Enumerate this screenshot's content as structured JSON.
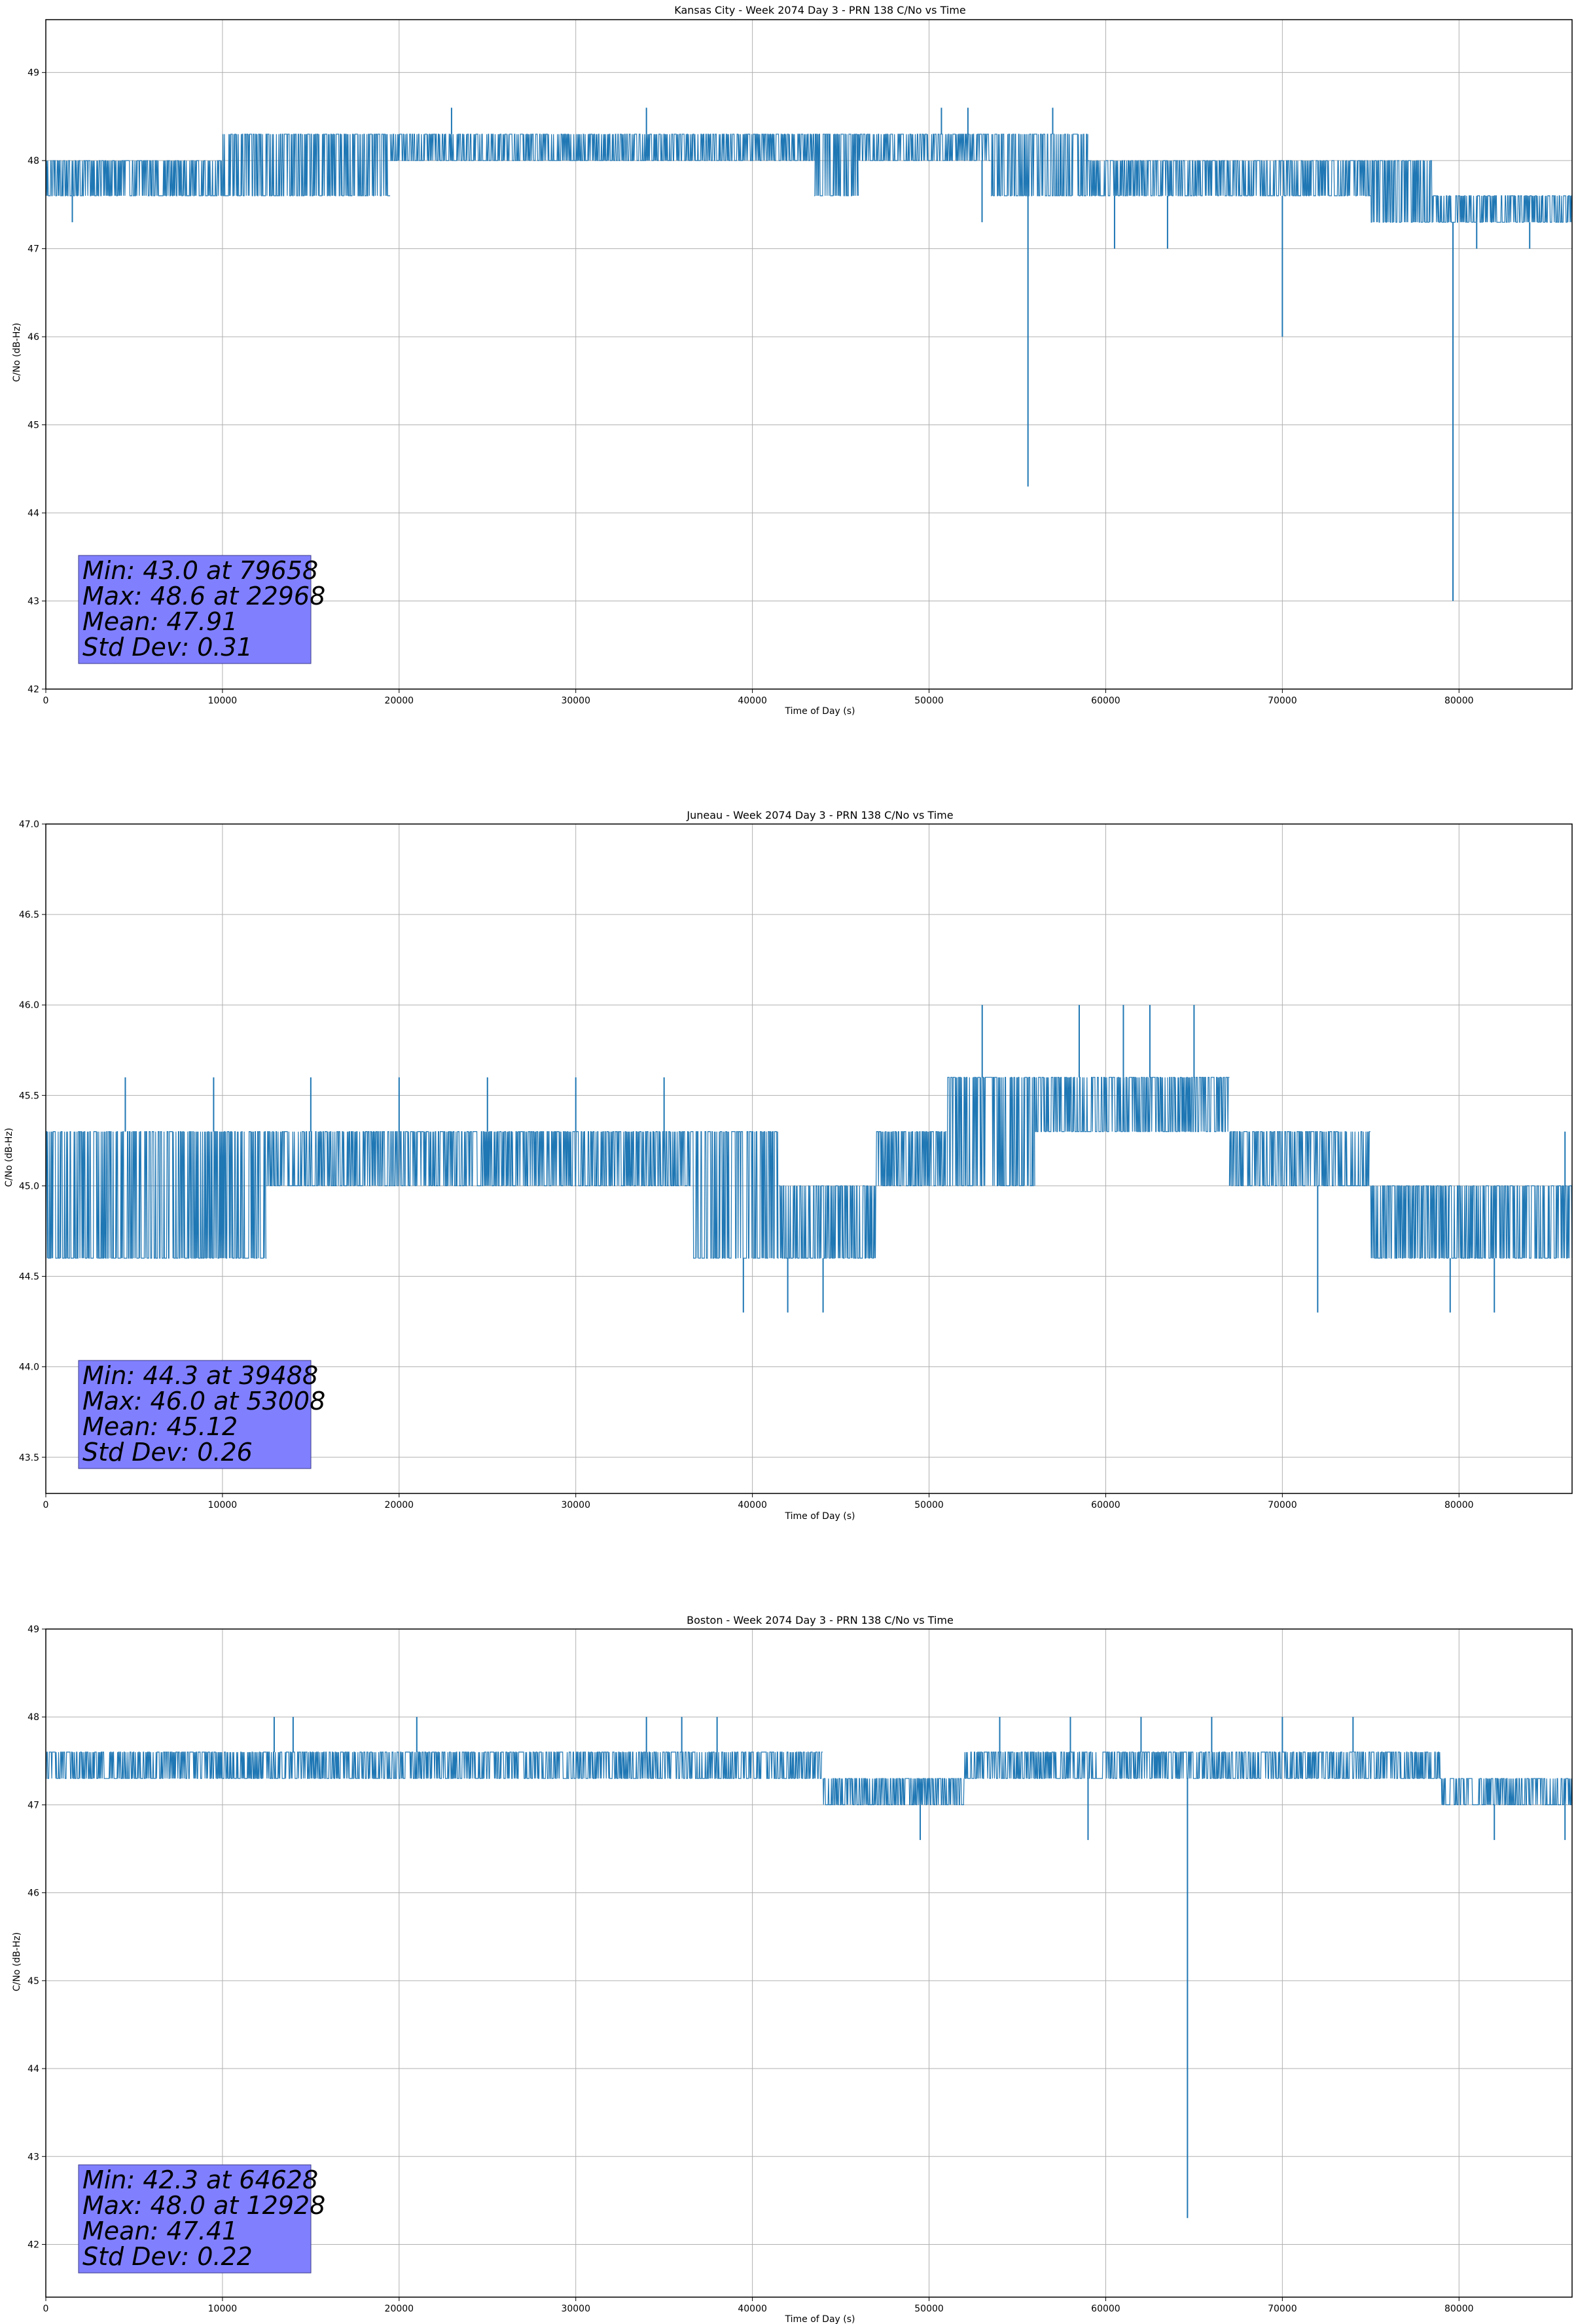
{
  "chart_data": [
    {
      "type": "line",
      "title": "Kansas City - Week 2074 Day 3 - PRN 138 C/No vs Time",
      "xlabel": "Time of Day (s)",
      "ylabel": "C/No (dB-Hz)",
      "xlim": [
        0,
        86400
      ],
      "ylim": [
        42,
        49.6
      ],
      "xticks": [
        0,
        10000,
        20000,
        30000,
        40000,
        50000,
        60000,
        70000,
        80000
      ],
      "yticks": [
        42,
        43,
        44,
        45,
        46,
        47,
        48,
        49
      ],
      "ytick_labels": [
        "42",
        "43",
        "44",
        "45",
        "46",
        "47",
        "48",
        "49"
      ],
      "grid": true,
      "series_color": "#1f77b4",
      "band_segments": [
        {
          "x0": 0,
          "x1": 10000,
          "low": 47.6,
          "high": 48.0
        },
        {
          "x0": 10000,
          "x1": 19500,
          "low": 47.6,
          "high": 48.3
        },
        {
          "x0": 19500,
          "x1": 43500,
          "low": 48.0,
          "high": 48.3
        },
        {
          "x0": 43500,
          "x1": 46000,
          "low": 47.6,
          "high": 48.3
        },
        {
          "x0": 46000,
          "x1": 53500,
          "low": 48.0,
          "high": 48.3
        },
        {
          "x0": 53500,
          "x1": 59000,
          "low": 47.6,
          "high": 48.3
        },
        {
          "x0": 59000,
          "x1": 66000,
          "low": 47.6,
          "high": 48.0
        },
        {
          "x0": 66000,
          "x1": 75000,
          "low": 47.6,
          "high": 48.0
        },
        {
          "x0": 75000,
          "x1": 78500,
          "low": 47.3,
          "high": 48.0
        },
        {
          "x0": 78500,
          "x1": 86400,
          "low": 47.3,
          "high": 47.6
        }
      ],
      "spikes": [
        {
          "x": 55600,
          "y": 44.3
        },
        {
          "x": 79658,
          "y": 43.0
        },
        {
          "x": 70000,
          "y": 46.0
        },
        {
          "x": 22968,
          "y": 48.6
        },
        {
          "x": 34000,
          "y": 48.6
        },
        {
          "x": 50700,
          "y": 48.6
        },
        {
          "x": 52200,
          "y": 48.6
        },
        {
          "x": 57000,
          "y": 48.6
        },
        {
          "x": 1500,
          "y": 47.3
        },
        {
          "x": 53000,
          "y": 47.3
        },
        {
          "x": 60500,
          "y": 47.0
        },
        {
          "x": 63500,
          "y": 47.0
        },
        {
          "x": 81000,
          "y": 47.0
        },
        {
          "x": 84000,
          "y": 47.0
        }
      ],
      "annotation": {
        "lines": [
          "Min: 43.0 at 79658",
          "Max: 48.6 at 22968",
          "Mean: 47.91",
          "Std Dev: 0.31"
        ],
        "color": "#8080ff"
      }
    },
    {
      "type": "line",
      "title": "Juneau - Week 2074 Day 3 - PRN 138 C/No vs Time",
      "xlabel": "Time of Day (s)",
      "ylabel": "C/No (dB-Hz)",
      "xlim": [
        0,
        86400
      ],
      "ylim": [
        43.3,
        47.0
      ],
      "xticks": [
        0,
        10000,
        20000,
        30000,
        40000,
        50000,
        60000,
        70000,
        80000
      ],
      "yticks": [
        43.5,
        44.0,
        44.5,
        45.0,
        45.5,
        46.0,
        46.5,
        47.0
      ],
      "ytick_labels": [
        "43.5",
        "44.0",
        "44.5",
        "45.0",
        "45.5",
        "46.0",
        "46.5",
        "47.0"
      ],
      "grid": true,
      "series_color": "#1f77b4",
      "band_segments": [
        {
          "x0": 0,
          "x1": 12500,
          "low": 44.6,
          "high": 45.3
        },
        {
          "x0": 12500,
          "x1": 36500,
          "low": 45.0,
          "high": 45.3
        },
        {
          "x0": 36500,
          "x1": 41500,
          "low": 44.6,
          "high": 45.3
        },
        {
          "x0": 41500,
          "x1": 47000,
          "low": 44.6,
          "high": 45.0
        },
        {
          "x0": 47000,
          "x1": 51000,
          "low": 45.0,
          "high": 45.3
        },
        {
          "x0": 51000,
          "x1": 56000,
          "low": 45.0,
          "high": 45.6
        },
        {
          "x0": 56000,
          "x1": 60000,
          "low": 45.3,
          "high": 45.6
        },
        {
          "x0": 60000,
          "x1": 63500,
          "low": 45.3,
          "high": 45.6
        },
        {
          "x0": 63500,
          "x1": 67000,
          "low": 45.3,
          "high": 45.6
        },
        {
          "x0": 67000,
          "x1": 75000,
          "low": 45.0,
          "high": 45.3
        },
        {
          "x0": 75000,
          "x1": 86400,
          "low": 44.6,
          "high": 45.0
        }
      ],
      "spikes": [
        {
          "x": 39488,
          "y": 44.3
        },
        {
          "x": 42000,
          "y": 44.3
        },
        {
          "x": 44000,
          "y": 44.3
        },
        {
          "x": 72000,
          "y": 44.3
        },
        {
          "x": 79500,
          "y": 44.3
        },
        {
          "x": 82000,
          "y": 44.3
        },
        {
          "x": 53008,
          "y": 46.0
        },
        {
          "x": 58500,
          "y": 46.0
        },
        {
          "x": 61000,
          "y": 46.0
        },
        {
          "x": 62500,
          "y": 46.0
        },
        {
          "x": 65000,
          "y": 46.0
        },
        {
          "x": 4500,
          "y": 45.6
        },
        {
          "x": 9500,
          "y": 45.6
        },
        {
          "x": 15000,
          "y": 45.6
        },
        {
          "x": 20000,
          "y": 45.6
        },
        {
          "x": 25000,
          "y": 45.6
        },
        {
          "x": 30000,
          "y": 45.6
        },
        {
          "x": 35000,
          "y": 45.6
        },
        {
          "x": 86000,
          "y": 45.3
        }
      ],
      "annotation": {
        "lines": [
          "Min: 44.3 at 39488",
          "Max: 46.0 at 53008",
          "Mean: 45.12",
          "Std Dev: 0.26"
        ],
        "color": "#8080ff"
      }
    },
    {
      "type": "line",
      "title": "Boston - Week 2074 Day 3 - PRN 138 C/No vs Time",
      "xlabel": "Time of Day (s)",
      "ylabel": "C/No (dB-Hz)",
      "xlim": [
        0,
        86400
      ],
      "ylim": [
        41.4,
        49.0
      ],
      "xticks": [
        0,
        10000,
        20000,
        30000,
        40000,
        50000,
        60000,
        70000,
        80000
      ],
      "yticks": [
        42,
        43,
        44,
        45,
        46,
        47,
        48,
        49
      ],
      "ytick_labels": [
        "42",
        "43",
        "44",
        "45",
        "46",
        "47",
        "48",
        "49"
      ],
      "grid": true,
      "series_color": "#1f77b4",
      "band_segments": [
        {
          "x0": 0,
          "x1": 33500,
          "low": 47.3,
          "high": 47.6
        },
        {
          "x0": 33500,
          "x1": 40000,
          "low": 47.3,
          "high": 47.6
        },
        {
          "x0": 40000,
          "x1": 44000,
          "low": 47.3,
          "high": 47.6
        },
        {
          "x0": 44000,
          "x1": 52000,
          "low": 47.0,
          "high": 47.3
        },
        {
          "x0": 52000,
          "x1": 79000,
          "low": 47.3,
          "high": 47.6
        },
        {
          "x0": 79000,
          "x1": 86400,
          "low": 47.0,
          "high": 47.3
        }
      ],
      "spikes": [
        {
          "x": 64628,
          "y": 42.3
        },
        {
          "x": 12928,
          "y": 48.0
        },
        {
          "x": 14000,
          "y": 48.0
        },
        {
          "x": 21000,
          "y": 48.0
        },
        {
          "x": 34000,
          "y": 48.0
        },
        {
          "x": 36000,
          "y": 48.0
        },
        {
          "x": 38000,
          "y": 48.0
        },
        {
          "x": 54000,
          "y": 48.0
        },
        {
          "x": 58000,
          "y": 48.0
        },
        {
          "x": 62000,
          "y": 48.0
        },
        {
          "x": 66000,
          "y": 48.0
        },
        {
          "x": 70000,
          "y": 48.0
        },
        {
          "x": 74000,
          "y": 48.0
        },
        {
          "x": 49500,
          "y": 46.6
        },
        {
          "x": 59000,
          "y": 46.6
        },
        {
          "x": 82000,
          "y": 46.6
        },
        {
          "x": 86000,
          "y": 46.6
        }
      ],
      "annotation": {
        "lines": [
          "Min: 42.3 at 64628",
          "Max: 48.0 at 12928",
          "Mean: 47.41",
          "Std Dev: 0.22"
        ],
        "color": "#8080ff"
      }
    }
  ]
}
